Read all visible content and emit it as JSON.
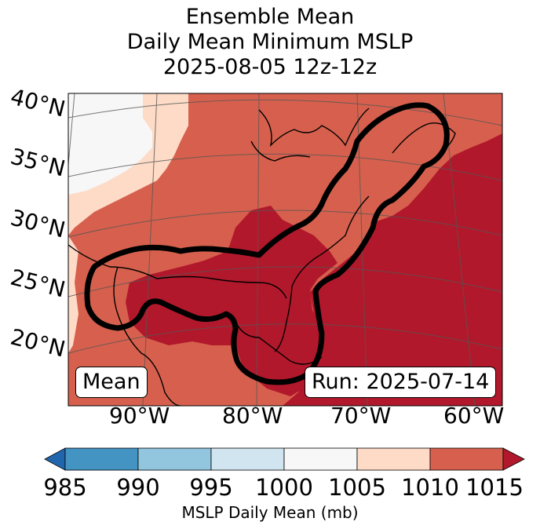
{
  "title": {
    "line1": "Ensemble Mean",
    "line2": "Daily Mean Minimum MSLP",
    "line3": "2025-08-05 12z-12z"
  },
  "map": {
    "lat_labels": [
      "40°N",
      "35°N",
      "30°N",
      "25°N",
      "20°N"
    ],
    "lon_labels": [
      "90°W",
      "80°W",
      "70°W",
      "60°W"
    ],
    "left_box": "Mean",
    "right_box": "Run: 2025-07-14",
    "region_icon": "mslp-field-map"
  },
  "colorbar": {
    "ticks": [
      "985",
      "990",
      "995",
      "1000",
      "1005",
      "1010",
      "1015"
    ],
    "label": "MSLP Daily Mean (mb)",
    "colors": [
      "#2166ac",
      "#4393c3",
      "#92c5de",
      "#d1e5f0",
      "#f7f7f7",
      "#fddbc7",
      "#d6604d",
      "#b2182b"
    ]
  }
}
